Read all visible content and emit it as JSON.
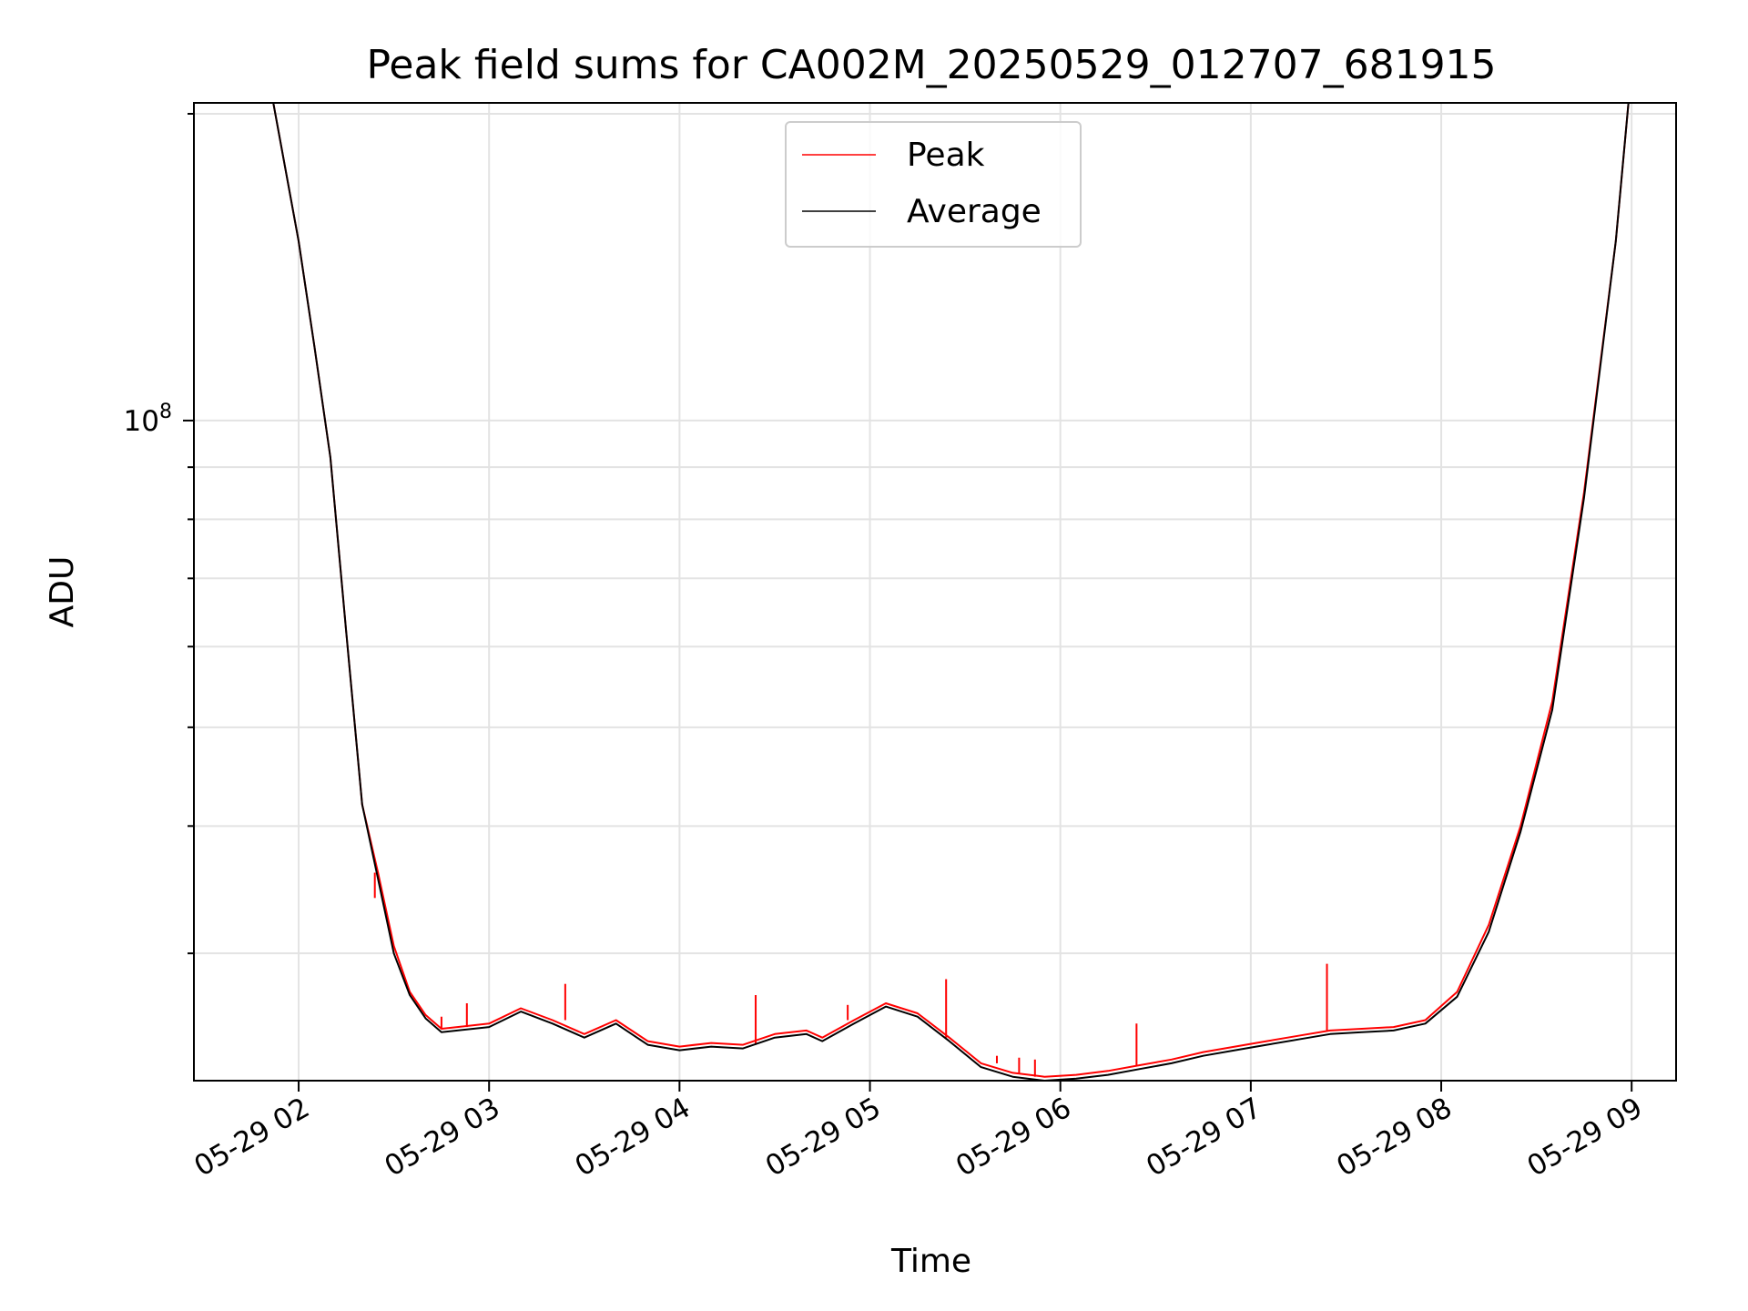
{
  "chart_data": {
    "type": "line",
    "title": "Peak field sums for CA002M_20250529_012707_681915",
    "xlabel": "Time",
    "ylabel": "ADU",
    "yscale": "log",
    "grid": true,
    "legend_position": "top-center",
    "xlim": [
      "05-29 01:27",
      "05-29 09:14"
    ],
    "ylim": [
      22500000,
      205000000
    ],
    "x_ticks": [
      {
        "time": "05-29 02:00",
        "label": "05-29 02"
      },
      {
        "time": "05-29 03:00",
        "label": "05-29 03"
      },
      {
        "time": "05-29 04:00",
        "label": "05-29 04"
      },
      {
        "time": "05-29 05:00",
        "label": "05-29 05"
      },
      {
        "time": "05-29 06:00",
        "label": "05-29 06"
      },
      {
        "time": "05-29 07:00",
        "label": "05-29 07"
      },
      {
        "time": "05-29 08:00",
        "label": "05-29 08"
      },
      {
        "time": "05-29 09:00",
        "label": "05-29 09"
      }
    ],
    "y_tick_label": {
      "value": 100000000,
      "base": "10",
      "exponent": "8"
    },
    "series": [
      {
        "name": "Peak",
        "color": "#ff0000",
        "points": [
          [
            "05-29 01:52",
            205000000
          ],
          [
            "05-29 02:00",
            150000000
          ],
          [
            "05-29 02:05",
            118000000
          ],
          [
            "05-29 02:10",
            92000000
          ],
          [
            "05-29 02:15",
            62000000
          ],
          [
            "05-29 02:20",
            42000000
          ],
          [
            "05-29 02:25",
            36000000
          ],
          [
            "05-29 02:30",
            30500000
          ],
          [
            "05-29 02:35",
            27500000
          ],
          [
            "05-29 02:40",
            26100000
          ],
          [
            "05-29 02:45",
            25300000
          ],
          [
            "05-29 02:50",
            25400000
          ],
          [
            "05-29 03:00",
            25600000
          ],
          [
            "05-29 03:10",
            26500000
          ],
          [
            "05-29 03:20",
            25800000
          ],
          [
            "05-29 03:30",
            25000000
          ],
          [
            "05-29 03:40",
            25800000
          ],
          [
            "05-29 03:50",
            24600000
          ],
          [
            "05-29 04:00",
            24300000
          ],
          [
            "05-29 04:10",
            24500000
          ],
          [
            "05-29 04:20",
            24400000
          ],
          [
            "05-29 04:30",
            25000000
          ],
          [
            "05-29 04:40",
            25200000
          ],
          [
            "05-29 04:45",
            24800000
          ],
          [
            "05-29 04:55",
            25800000
          ],
          [
            "05-29 05:05",
            26800000
          ],
          [
            "05-29 05:15",
            26200000
          ],
          [
            "05-29 05:25",
            24800000
          ],
          [
            "05-29 05:35",
            23400000
          ],
          [
            "05-29 05:45",
            22900000
          ],
          [
            "05-29 05:55",
            22700000
          ],
          [
            "05-29 06:05",
            22800000
          ],
          [
            "05-29 06:15",
            23000000
          ],
          [
            "05-29 06:25",
            23300000
          ],
          [
            "05-29 06:35",
            23600000
          ],
          [
            "05-29 06:45",
            24000000
          ],
          [
            "05-29 06:55",
            24300000
          ],
          [
            "05-29 07:05",
            24600000
          ],
          [
            "05-29 07:15",
            24900000
          ],
          [
            "05-29 07:25",
            25200000
          ],
          [
            "05-29 07:35",
            25300000
          ],
          [
            "05-29 07:45",
            25400000
          ],
          [
            "05-29 07:55",
            25800000
          ],
          [
            "05-29 08:05",
            27500000
          ],
          [
            "05-29 08:15",
            32000000
          ],
          [
            "05-29 08:25",
            40000000
          ],
          [
            "05-29 08:35",
            53000000
          ],
          [
            "05-29 08:45",
            85000000
          ],
          [
            "05-29 08:55",
            150000000
          ],
          [
            "05-29 08:59",
            205000000
          ]
        ],
        "spikes": [
          [
            "05-29 02:24",
            34000000
          ],
          [
            "05-29 02:45",
            26000000
          ],
          [
            "05-29 02:53",
            26800000
          ],
          [
            "05-29 03:24",
            28000000
          ],
          [
            "05-29 04:24",
            27300000
          ],
          [
            "05-29 04:53",
            26700000
          ],
          [
            "05-29 05:24",
            28300000
          ],
          [
            "05-29 05:29",
            24800000
          ],
          [
            "05-29 05:40",
            23800000
          ],
          [
            "05-29 05:47",
            23700000
          ],
          [
            "05-29 05:52",
            23600000
          ],
          [
            "05-29 06:24",
            25600000
          ],
          [
            "05-29 07:24",
            29300000
          ]
        ]
      },
      {
        "name": "Average",
        "color": "#000000",
        "points": [
          [
            "05-29 01:52",
            205000000
          ],
          [
            "05-29 02:00",
            150000000
          ],
          [
            "05-29 02:05",
            118000000
          ],
          [
            "05-29 02:10",
            92000000
          ],
          [
            "05-29 02:15",
            62000000
          ],
          [
            "05-29 02:20",
            42000000
          ],
          [
            "05-29 02:25",
            35500000
          ],
          [
            "05-29 02:30",
            30000000
          ],
          [
            "05-29 02:35",
            27300000
          ],
          [
            "05-29 02:40",
            25900000
          ],
          [
            "05-29 02:45",
            25100000
          ],
          [
            "05-29 02:50",
            25200000
          ],
          [
            "05-29 03:00",
            25400000
          ],
          [
            "05-29 03:10",
            26300000
          ],
          [
            "05-29 03:20",
            25600000
          ],
          [
            "05-29 03:30",
            24800000
          ],
          [
            "05-29 03:40",
            25600000
          ],
          [
            "05-29 03:50",
            24400000
          ],
          [
            "05-29 04:00",
            24100000
          ],
          [
            "05-29 04:10",
            24300000
          ],
          [
            "05-29 04:20",
            24200000
          ],
          [
            "05-29 04:30",
            24800000
          ],
          [
            "05-29 04:40",
            25000000
          ],
          [
            "05-29 04:45",
            24600000
          ],
          [
            "05-29 04:55",
            25600000
          ],
          [
            "05-29 05:05",
            26600000
          ],
          [
            "05-29 05:15",
            26000000
          ],
          [
            "05-29 05:25",
            24600000
          ],
          [
            "05-29 05:35",
            23200000
          ],
          [
            "05-29 05:45",
            22700000
          ],
          [
            "05-29 05:55",
            22500000
          ],
          [
            "05-29 06:05",
            22600000
          ],
          [
            "05-29 06:15",
            22800000
          ],
          [
            "05-29 06:25",
            23100000
          ],
          [
            "05-29 06:35",
            23400000
          ],
          [
            "05-29 06:45",
            23800000
          ],
          [
            "05-29 06:55",
            24100000
          ],
          [
            "05-29 07:05",
            24400000
          ],
          [
            "05-29 07:15",
            24700000
          ],
          [
            "05-29 07:25",
            25000000
          ],
          [
            "05-29 07:35",
            25100000
          ],
          [
            "05-29 07:45",
            25200000
          ],
          [
            "05-29 07:55",
            25600000
          ],
          [
            "05-29 08:05",
            27200000
          ],
          [
            "05-29 08:15",
            31500000
          ],
          [
            "05-29 08:25",
            39500000
          ],
          [
            "05-29 08:35",
            52000000
          ],
          [
            "05-29 08:45",
            84000000
          ],
          [
            "05-29 08:55",
            150000000
          ],
          [
            "05-29 08:59",
            205000000
          ]
        ]
      }
    ]
  }
}
